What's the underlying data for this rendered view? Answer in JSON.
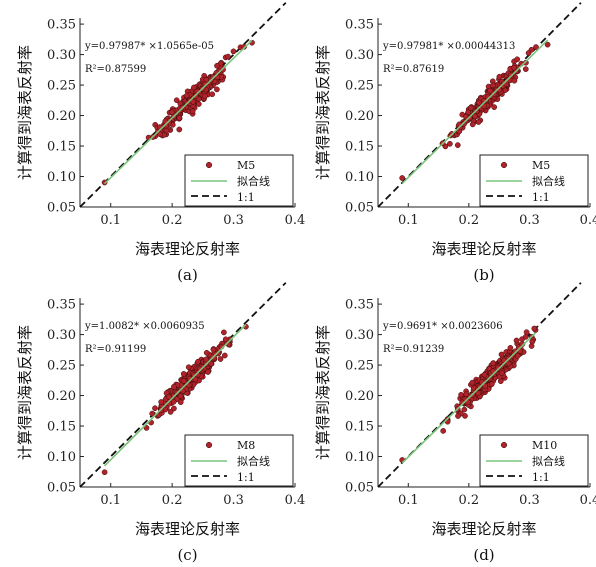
{
  "figure": {
    "xlabel": "海表理论反射率",
    "ylabel": "计算得到海表反射率",
    "legend_fit": "拟合线",
    "legend_ref": "1:1",
    "colors": {
      "points": "#b0232a",
      "point_edge": "#3a0b0b",
      "fit": "#7cc47c",
      "ref": "#111111"
    }
  },
  "chart_data": [
    {
      "type": "scatter",
      "panel": "(a)",
      "equation": "y=0.97987* ×1.0565e-05",
      "r2": "R²=0.87599",
      "series_name": "M5",
      "xlim": [
        0.05,
        0.4
      ],
      "ylim": [
        0.05,
        0.36
      ],
      "xticks": [
        "0.1",
        "0.2",
        "0.3",
        "0.4"
      ],
      "yticks": [
        "0.05",
        "0.10",
        "0.15",
        "0.20",
        "0.25",
        "0.30",
        "0.35"
      ],
      "x_range": [
        0.09,
        0.33
      ],
      "fit": {
        "slope": 0.97987,
        "intercept": 1.0565e-05
      },
      "grid": false,
      "legend": "bottom-right"
    },
    {
      "type": "scatter",
      "panel": "(b)",
      "equation": "y=0.97981* ×0.00044313",
      "r2": "R²=0.87619",
      "series_name": "M5",
      "xlim": [
        0.05,
        0.4
      ],
      "ylim": [
        0.05,
        0.36
      ],
      "xticks": [
        "0.1",
        "0.2",
        "0.3",
        "0.4"
      ],
      "yticks": [
        "0.05",
        "0.10",
        "0.15",
        "0.20",
        "0.25",
        "0.30",
        "0.35"
      ],
      "x_range": [
        0.09,
        0.33
      ],
      "fit": {
        "slope": 0.97981,
        "intercept": 0.00044313
      },
      "grid": false,
      "legend": "bottom-right"
    },
    {
      "type": "scatter",
      "panel": "(c)",
      "equation": "y=1.0082* ×0.0060935",
      "r2": "R²=0.91199",
      "series_name": "M8",
      "xlim": [
        0.05,
        0.4
      ],
      "ylim": [
        0.05,
        0.36
      ],
      "xticks": [
        "0.1",
        "0.2",
        "0.3",
        "0.4"
      ],
      "yticks": [
        "0.05",
        "0.10",
        "0.15",
        "0.20",
        "0.25",
        "0.30",
        "0.35"
      ],
      "x_range": [
        0.09,
        0.32
      ],
      "fit": {
        "slope": 1.0082,
        "intercept": -0.0060935
      },
      "grid": false,
      "legend": "bottom-right"
    },
    {
      "type": "scatter",
      "panel": "(d)",
      "equation": "y=0.9691* ×0.0023606",
      "r2": "R²=0.91239",
      "series_name": "M10",
      "xlim": [
        0.05,
        0.4
      ],
      "ylim": [
        0.05,
        0.36
      ],
      "xticks": [
        "0.1",
        "0.2",
        "0.3",
        "0.4"
      ],
      "yticks": [
        "0.05",
        "0.10",
        "0.15",
        "0.20",
        "0.25",
        "0.30",
        "0.35"
      ],
      "x_range": [
        0.09,
        0.31
      ],
      "fit": {
        "slope": 0.9691,
        "intercept": 0.0023606
      },
      "grid": false,
      "legend": "bottom-right"
    }
  ]
}
